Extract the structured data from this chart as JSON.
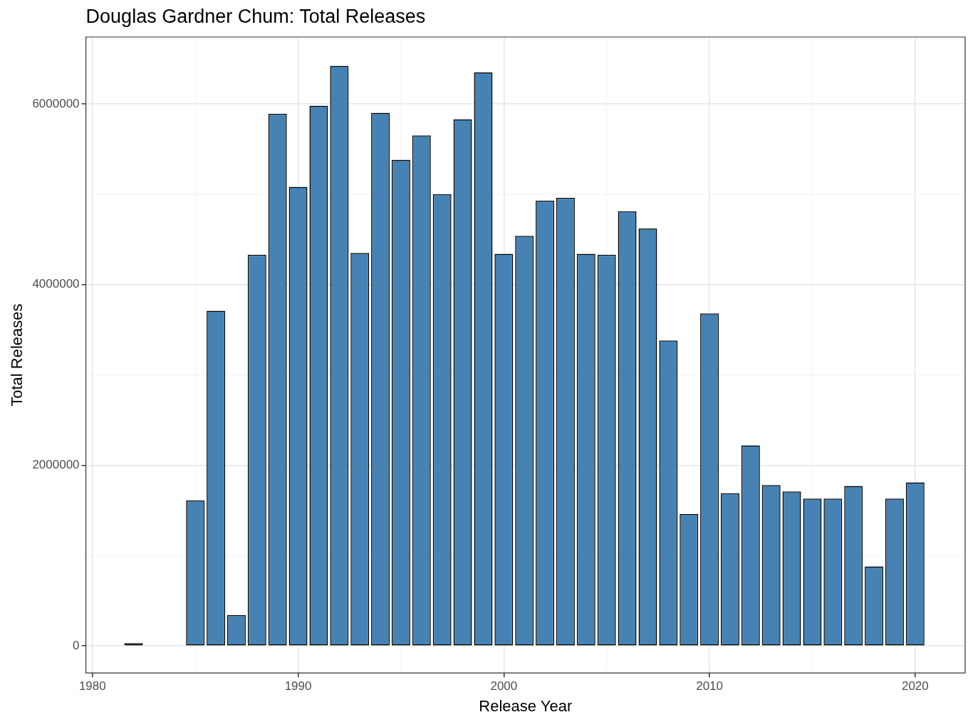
{
  "chart_data": {
    "type": "bar",
    "title": "Douglas Gardner Chum: Total Releases",
    "xlabel": "Release Year",
    "ylabel": "Total Releases",
    "x": [
      1982,
      1985,
      1986,
      1987,
      1988,
      1989,
      1990,
      1991,
      1992,
      1993,
      1994,
      1995,
      1996,
      1997,
      1998,
      1999,
      2000,
      2001,
      2002,
      2003,
      2004,
      2005,
      2006,
      2007,
      2008,
      2009,
      2010,
      2011,
      2012,
      2013,
      2014,
      2015,
      2016,
      2017,
      2018,
      2019,
      2020
    ],
    "values": [
      30000,
      1610000,
      3710000,
      340000,
      4330000,
      5890000,
      5080000,
      5980000,
      6420000,
      4350000,
      5900000,
      5380000,
      5650000,
      5000000,
      5830000,
      6350000,
      4340000,
      4540000,
      4930000,
      4960000,
      4340000,
      4330000,
      4810000,
      4620000,
      3380000,
      1460000,
      3680000,
      1690000,
      2220000,
      1780000,
      1710000,
      1630000,
      1630000,
      1770000,
      880000,
      1630000,
      1810000
    ],
    "color": "#4682b4",
    "xlim": [
      1979.68,
      2022.43
    ],
    "xticks": [
      1980,
      1990,
      2000,
      2010,
      2020
    ],
    "ylim": [
      -300000,
      6740000
    ],
    "yticks": [
      0,
      2000000,
      4000000,
      6000000
    ],
    "grid": true,
    "legend": false
  }
}
